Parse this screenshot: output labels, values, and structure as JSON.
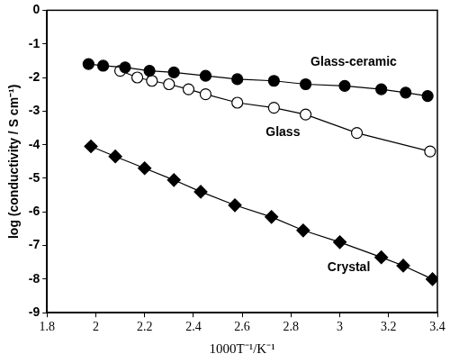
{
  "chart_data": {
    "type": "scatter",
    "x_label": "1000T⁻¹/K⁻¹",
    "y_label": "log (conductivity / S cm⁻¹)",
    "xlim": [
      1.8,
      3.4
    ],
    "xticks": [
      1.8,
      2,
      2.2,
      2.4,
      2.6,
      2.8,
      3,
      3.2,
      3.4
    ],
    "ylim": [
      -9,
      0
    ],
    "yticks": [
      -9,
      -8,
      -7,
      -6,
      -5,
      -4,
      -3,
      -2,
      -1,
      0
    ],
    "grid": false,
    "series": [
      {
        "name": "Glass-ceramic",
        "color": "#000000",
        "marker": "circle",
        "line_style": "solid",
        "x": [
          1.97,
          2.03,
          2.12,
          2.22,
          2.32,
          2.45,
          2.58,
          2.73,
          2.86,
          3.02,
          3.17,
          3.27,
          3.36
        ],
        "values": [
          -1.6,
          -1.65,
          -1.7,
          -1.8,
          -1.85,
          -1.95,
          -2.05,
          -2.1,
          -2.2,
          -2.25,
          -2.35,
          -2.45,
          -2.55
        ]
      },
      {
        "name": "Glass",
        "color": "#000000",
        "marker": "circle_open",
        "line_style": "solid",
        "x": [
          2.1,
          2.17,
          2.23,
          2.3,
          2.38,
          2.45,
          2.58,
          2.73,
          2.86,
          3.07,
          3.37
        ],
        "values": [
          -1.8,
          -2.0,
          -2.1,
          -2.2,
          -2.35,
          -2.5,
          -2.75,
          -2.9,
          -3.1,
          -3.65,
          -4.2
        ]
      },
      {
        "name": "Crystal",
        "color": "#000000",
        "marker": "diamond",
        "line_style": "solid",
        "x": [
          1.98,
          2.08,
          2.2,
          2.32,
          2.43,
          2.57,
          2.72,
          2.85,
          3.0,
          3.17,
          3.26,
          3.38
        ],
        "values": [
          -4.05,
          -4.35,
          -4.7,
          -5.05,
          -5.4,
          -5.8,
          -6.15,
          -6.55,
          -6.9,
          -7.35,
          -7.6,
          -8.0
        ]
      }
    ]
  }
}
